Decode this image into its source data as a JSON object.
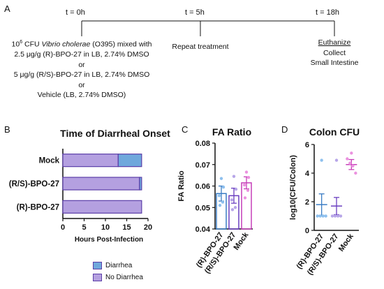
{
  "panels": {
    "a": "A",
    "b": "B",
    "c": "C",
    "d": "D"
  },
  "timeline": {
    "times": [
      "t = 0h",
      "t = 5h",
      "t = 18h"
    ],
    "left_text": {
      "line1_sup": "6",
      "line1_pre": "10",
      "line1_mid": " CFU ",
      "line1_species": "Vibrio cholerae",
      "line1_post": " (O395) mixed with",
      "line2": "2.5 μg/g (R)-BPO-27 in LB, 2.74% DMSO",
      "or1": "or",
      "line4": "5 μg/g (R/S)-BPO-27 in LB, 2.74% DMSO",
      "or2": "or",
      "line6": "Vehicle (LB, 2.74% DMSO)"
    },
    "middle_text": "Repeat treatment",
    "right_text": {
      "euthanize": "Euthanize",
      "collect": "Collect",
      "organ": "Small Intestine"
    }
  },
  "colors": {
    "diarrhea": "#6fa8dc",
    "no_diarrhea": "#b4a0e0",
    "bar_border": "#5b3ea8",
    "blue": "#3b7dc4",
    "purple": "#6a3fc0",
    "magenta": "#c63fb8",
    "light_blue_dot": "#8ec0ee",
    "light_purple_dot": "#b7a6e8",
    "pink_dot": "#eb92df"
  },
  "chart_data": [
    {
      "type": "bar",
      "orientation": "horizontal",
      "stacked": true,
      "title": "Time of Diarrheal Onset",
      "xlabel": "Hours Post-Infection",
      "ylabel": "",
      "categories": [
        "Mock",
        "(R/S)-BPO-27",
        "(R)-BPO-27"
      ],
      "series": [
        {
          "name": "No Diarrhea",
          "values": [
            13,
            18,
            18.5
          ]
        },
        {
          "name": "Diarrhea",
          "values": [
            5.5,
            0.5,
            0
          ]
        }
      ],
      "xlim": [
        0,
        20
      ],
      "xticks": [
        "0",
        "5",
        "10",
        "15",
        "20"
      ],
      "legend": [
        "Diarrhea",
        "No Diarrhea"
      ],
      "legend_position": "bottom"
    },
    {
      "type": "bar",
      "title": "FA Ratio",
      "xlabel": "",
      "ylabel": "FA Ratio",
      "categories": [
        "(R)-BPO-27",
        "(R/S)-BPO-27",
        "Mock"
      ],
      "values": [
        0.0565,
        0.0555,
        0.0615
      ],
      "error": [
        0.0035,
        0.0035,
        0.0028
      ],
      "points": [
        [
          0.0635,
          0.0595,
          0.0555,
          0.0525,
          0.051
        ],
        [
          0.0645,
          0.0585,
          0.0535,
          0.05,
          0.049
        ],
        [
          0.0665,
          0.064,
          0.0605,
          0.058,
          0.0545
        ]
      ],
      "ylim": [
        0.04,
        0.08
      ],
      "yticks": [
        "0.04",
        "0.05",
        "0.06",
        "0.07",
        "0.08"
      ]
    },
    {
      "type": "scatter",
      "title": "Colon CFU",
      "xlabel": "",
      "ylabel": "log10(CFU/Colon)",
      "categories": [
        "(R)-BPO-27",
        "(R/S)-BPO-27",
        "Mock"
      ],
      "means": [
        1.8,
        1.7,
        4.6
      ],
      "error": [
        0.75,
        0.6,
        0.35
      ],
      "points": [
        [
          4.9,
          1.0,
          1.0,
          1.0,
          1.0
        ],
        [
          4.9,
          1.0,
          1.0,
          1.0,
          1.0
        ],
        [
          5.4,
          5.0,
          4.7,
          4.5,
          4.0
        ]
      ],
      "ylim": [
        0,
        6
      ],
      "yticks": [
        "0",
        "2",
        "4",
        "6"
      ]
    }
  ]
}
